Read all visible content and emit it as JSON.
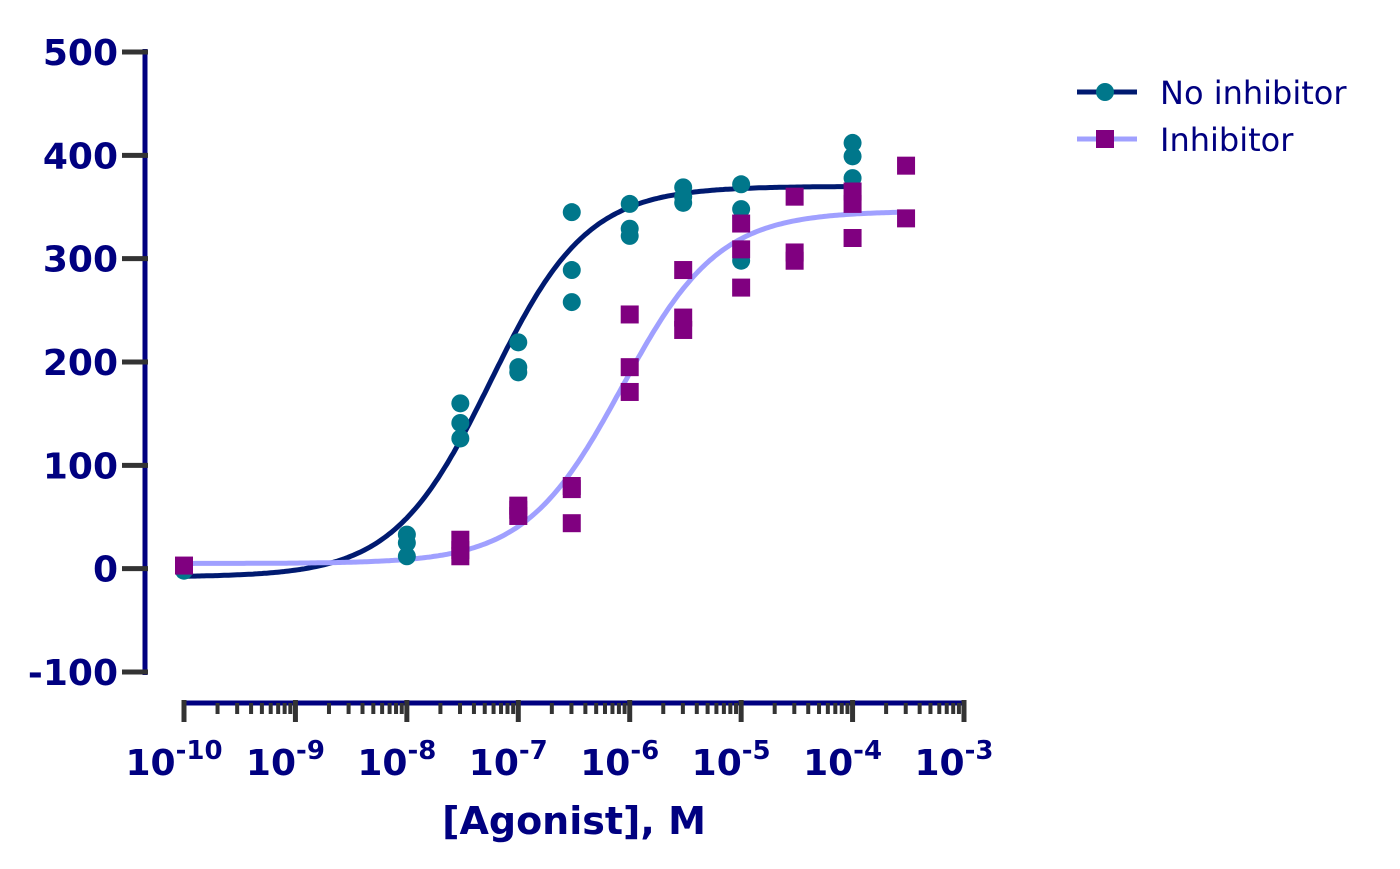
{
  "chart_data": {
    "type": "scatter",
    "title": "",
    "xlabel": "[Agonist], M",
    "ylabel": "",
    "xscale": "log10",
    "xlim_log10": [
      -10,
      -3
    ],
    "ylim": [
      -100,
      500
    ],
    "y_ticks": [
      -100,
      0,
      100,
      200,
      300,
      400,
      500
    ],
    "x_ticks": [
      {
        "base": "10",
        "exp": "-10",
        "log": -10
      },
      {
        "base": "10",
        "exp": "-9",
        "log": -9
      },
      {
        "base": "10",
        "exp": "-8",
        "log": -8
      },
      {
        "base": "10",
        "exp": "-7",
        "log": -7
      },
      {
        "base": "10",
        "exp": "-6",
        "log": -6
      },
      {
        "base": "10",
        "exp": "-5",
        "log": -5
      },
      {
        "base": "10",
        "exp": "-4",
        "log": -4
      },
      {
        "base": "10",
        "exp": "-3",
        "log": -3
      }
    ],
    "grid": false,
    "legend_position": "top-right",
    "series": [
      {
        "name": "No inhibitor",
        "marker": "circle",
        "marker_color": "#00778B",
        "line_color": "#001A70",
        "fit": {
          "bottom": -8,
          "top": 370,
          "log_ec50": -7.25,
          "hill": 1.0
        },
        "points": [
          [
            -10,
            -2
          ],
          [
            -8,
            33
          ],
          [
            -8,
            25
          ],
          [
            -8,
            12
          ],
          [
            -7.52,
            160
          ],
          [
            -7.52,
            141
          ],
          [
            -7.52,
            126
          ],
          [
            -7,
            219
          ],
          [
            -7,
            195
          ],
          [
            -7,
            190
          ],
          [
            -6.52,
            345
          ],
          [
            -6.52,
            289
          ],
          [
            -6.52,
            258
          ],
          [
            -6,
            353
          ],
          [
            -6,
            329
          ],
          [
            -6,
            322
          ],
          [
            -5.52,
            369
          ],
          [
            -5.52,
            360
          ],
          [
            -5.52,
            354
          ],
          [
            -5,
            372
          ],
          [
            -5,
            348
          ],
          [
            -5,
            298
          ],
          [
            -4,
            412
          ],
          [
            -4,
            399
          ],
          [
            -4,
            378
          ]
        ]
      },
      {
        "name": "Inhibitor",
        "marker": "square",
        "marker_color": "#800080",
        "line_color": "#A0A0FF",
        "fit": {
          "bottom": 5,
          "top": 346,
          "log_ec50": -6.07,
          "hill": 1.0
        },
        "points": [
          [
            -10,
            3
          ],
          [
            -7.52,
            28
          ],
          [
            -7.52,
            18
          ],
          [
            -7.52,
            12
          ],
          [
            -7,
            61
          ],
          [
            -7,
            57
          ],
          [
            -7,
            51
          ],
          [
            -6.52,
            80
          ],
          [
            -6.52,
            77
          ],
          [
            -6.52,
            44
          ],
          [
            -6,
            246
          ],
          [
            -6,
            195
          ],
          [
            -6,
            171
          ],
          [
            -5.52,
            289
          ],
          [
            -5.52,
            243
          ],
          [
            -5.52,
            231
          ],
          [
            -5,
            334
          ],
          [
            -5,
            309
          ],
          [
            -5,
            272
          ],
          [
            -4.52,
            360
          ],
          [
            -4.52,
            306
          ],
          [
            -4.52,
            298
          ],
          [
            -4,
            365
          ],
          [
            -4,
            353
          ],
          [
            -4,
            320
          ],
          [
            -3.52,
            390
          ],
          [
            -3.52,
            339
          ]
        ]
      }
    ]
  },
  "colors": {
    "axis": "#000080",
    "tick": "#333333",
    "text": "#000080"
  }
}
